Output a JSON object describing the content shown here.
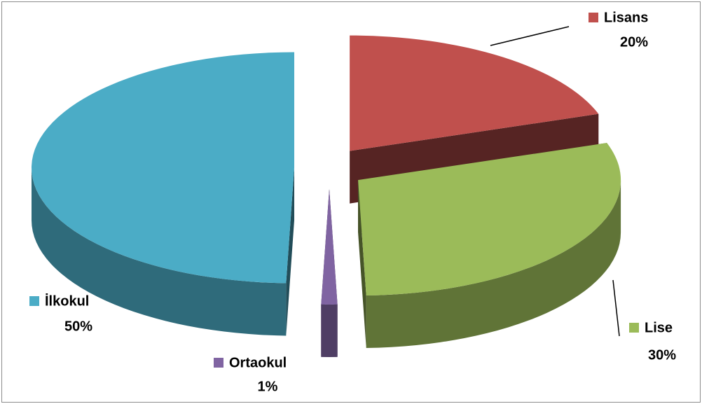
{
  "chart_data": {
    "type": "pie",
    "categories": [
      "Lisans",
      "Lise",
      "Ortaokul",
      "İlkokul"
    ],
    "values": [
      20,
      30,
      1,
      50
    ],
    "value_labels": [
      "20%",
      "30%",
      "1%",
      "50%"
    ],
    "colors": [
      "#c0504d",
      "#9bbb59",
      "#8064a2",
      "#4bacc6"
    ]
  }
}
